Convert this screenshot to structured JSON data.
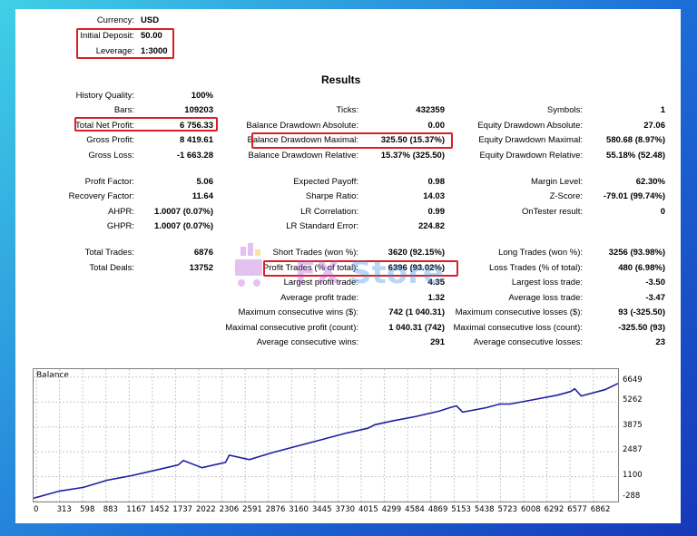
{
  "header": {
    "currency_label": "Currency:",
    "currency_value": "USD",
    "deposit_label": "Initial Deposit:",
    "deposit_value": "50.00",
    "leverage_label": "Leverage:",
    "leverage_value": "1:3000"
  },
  "results_title": "Results",
  "col1": [
    {
      "label": "History Quality:",
      "value": "100%"
    },
    {
      "label": "Bars:",
      "value": "109203"
    },
    {
      "label": "Total Net Profit:",
      "value": "6 756.33"
    },
    {
      "label": "Gross Profit:",
      "value": "8 419.61"
    },
    {
      "label": "Gross Loss:",
      "value": "-1 663.28"
    },
    {
      "label": "Profit Factor:",
      "value": "5.06"
    },
    {
      "label": "Recovery Factor:",
      "value": "11.64"
    },
    {
      "label": "AHPR:",
      "value": "1.0007 (0.07%)"
    },
    {
      "label": "GHPR:",
      "value": "1.0007 (0.07%)"
    },
    {
      "label": "Total Trades:",
      "value": "6876"
    },
    {
      "label": "Total Deals:",
      "value": "13752"
    }
  ],
  "col2": [
    {
      "label": "Ticks:",
      "value": "432359"
    },
    {
      "label": "Balance Drawdown Absolute:",
      "value": "0.00"
    },
    {
      "label": "Balance Drawdown Maximal:",
      "value": "325.50 (15.37%)"
    },
    {
      "label": "Balance Drawdown Relative:",
      "value": "15.37% (325.50)"
    },
    {
      "label": "Expected Payoff:",
      "value": "0.98"
    },
    {
      "label": "Sharpe Ratio:",
      "value": "14.03"
    },
    {
      "label": "LR Correlation:",
      "value": "0.99"
    },
    {
      "label": "LR Standard Error:",
      "value": "224.82"
    },
    {
      "label": "Short Trades (won %):",
      "value": "3620 (92.15%)"
    },
    {
      "label": "Profit Trades (% of total):",
      "value": "6396 (93.02%)"
    },
    {
      "label": "Largest profit trade:",
      "value": "4.35"
    },
    {
      "label": "Average profit trade:",
      "value": "1.32"
    },
    {
      "label": "Maximum consecutive wins ($):",
      "value": "742 (1 040.31)"
    },
    {
      "label": "Maximal consecutive profit (count):",
      "value": "1 040.31 (742)"
    },
    {
      "label": "Average consecutive wins:",
      "value": "291"
    }
  ],
  "col3": [
    {
      "label": "Symbols:",
      "value": "1"
    },
    {
      "label": "Equity Drawdown Absolute:",
      "value": "27.06"
    },
    {
      "label": "Equity Drawdown Maximal:",
      "value": "580.68 (8.97%)"
    },
    {
      "label": "Equity Drawdown Relative:",
      "value": "55.18% (52.48)"
    },
    {
      "label": "Margin Level:",
      "value": "62.30%"
    },
    {
      "label": "Z-Score:",
      "value": "-79.01 (99.74%)"
    },
    {
      "label": "OnTester result:",
      "value": "0"
    },
    {
      "label": "Long Trades (won %):",
      "value": "3256 (93.98%)"
    },
    {
      "label": "Loss Trades (% of total):",
      "value": "480 (6.98%)"
    },
    {
      "label": "Largest loss trade:",
      "value": "-3.50"
    },
    {
      "label": "Average loss trade:",
      "value": "-3.47"
    },
    {
      "label": "Maximum consecutive losses ($):",
      "value": "93 (-325.50)"
    },
    {
      "label": "Maximal consecutive loss (count):",
      "value": "-325.50 (93)"
    },
    {
      "label": "Average consecutive losses:",
      "value": "23"
    }
  ],
  "chart_data": {
    "type": "line",
    "title": "Balance",
    "xticks": [
      "0",
      "313",
      "598",
      "883",
      "1167",
      "1452",
      "1737",
      "2022",
      "2306",
      "2591",
      "2876",
      "3160",
      "3445",
      "3730",
      "4015",
      "4299",
      "4584",
      "4869",
      "5153",
      "5438",
      "5723",
      "6008",
      "6292",
      "6577",
      "6862"
    ],
    "yticks": [
      "6649",
      "5262",
      "3875",
      "2487",
      "1100",
      "-288"
    ],
    "ylim": [
      -288,
      7100
    ],
    "xlim": [
      0,
      7020
    ],
    "series": [
      {
        "color": "#1f1fa0",
        "x": [
          0,
          313,
          598,
          883,
          1167,
          1452,
          1737,
          1800,
          2022,
          2306,
          2350,
          2591,
          2876,
          3160,
          3445,
          3730,
          4015,
          4100,
          4299,
          4584,
          4869,
          5000,
          5080,
          5153,
          5438,
          5600,
          5723,
          6008,
          6292,
          6450,
          6500,
          6577,
          6862,
          7020
        ],
        "y": [
          -100,
          300,
          500,
          900,
          1150,
          1450,
          1750,
          2000,
          1600,
          1900,
          2300,
          2050,
          2450,
          2800,
          3150,
          3500,
          3800,
          4000,
          4200,
          4450,
          4750,
          4950,
          5050,
          4700,
          4950,
          5150,
          5150,
          5400,
          5650,
          5850,
          6000,
          5600,
          5950,
          6300
        ]
      }
    ]
  }
}
